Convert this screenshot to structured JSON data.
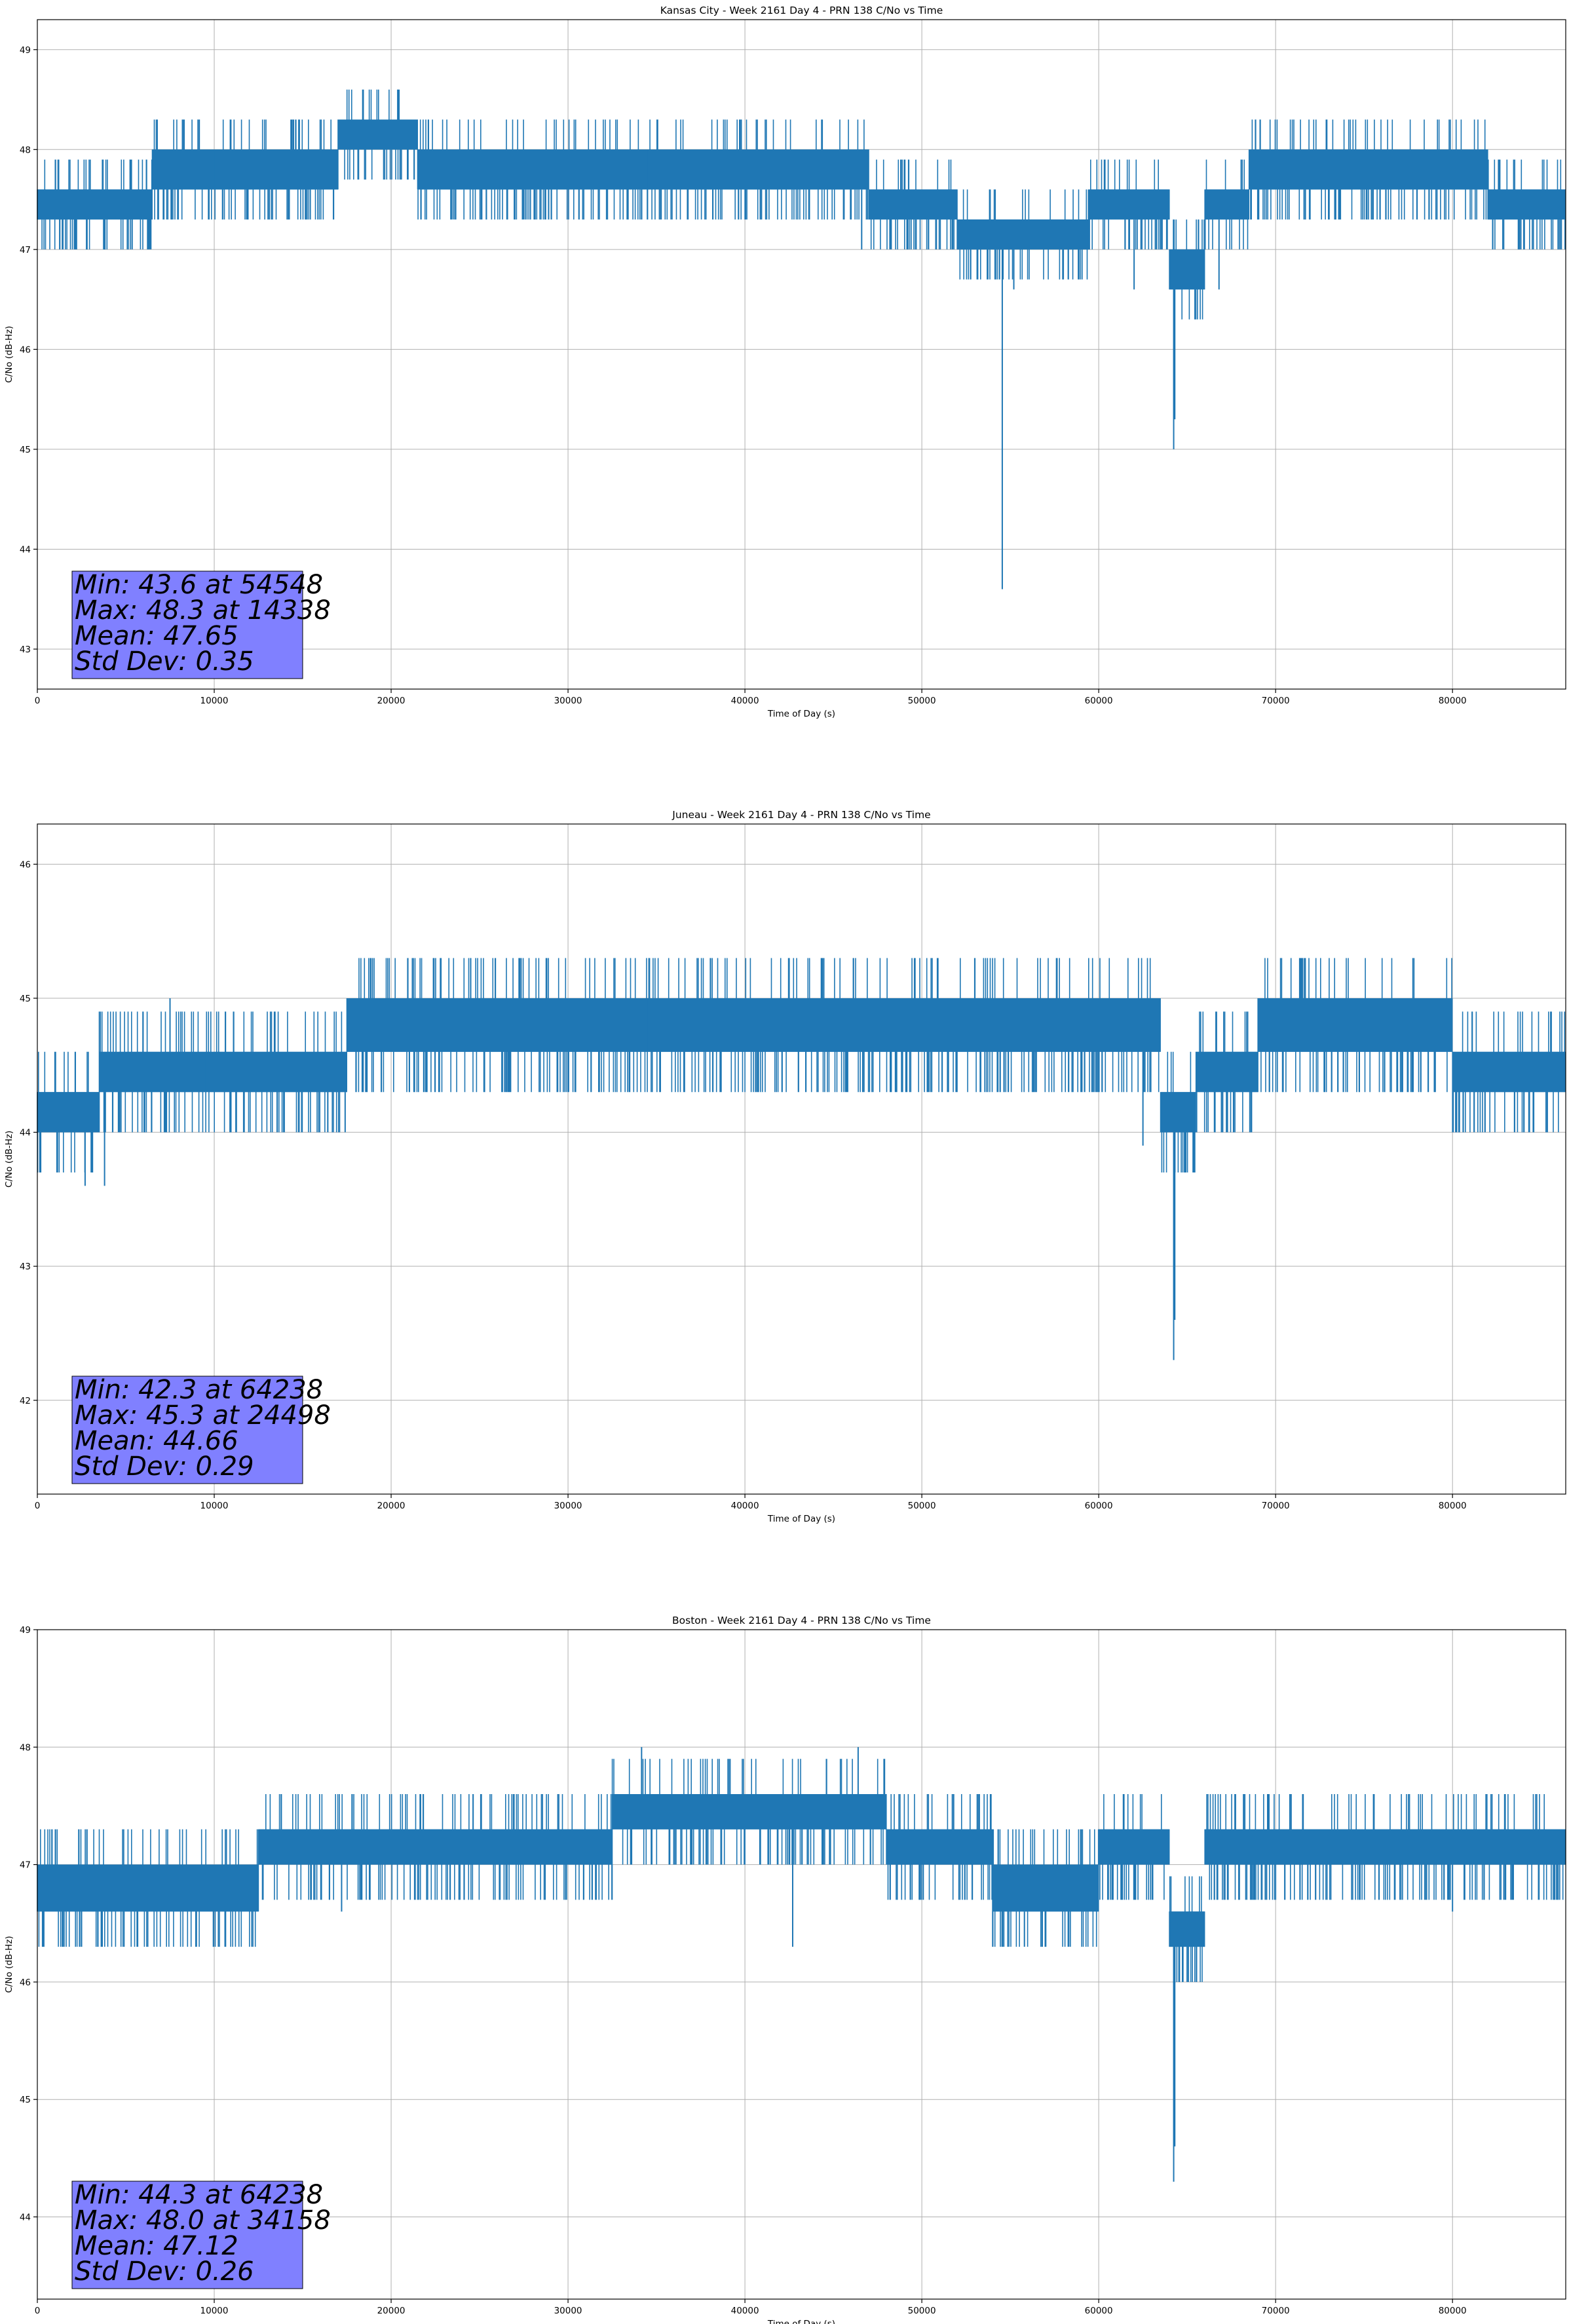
{
  "chart_data": [
    {
      "type": "line",
      "title": "Kansas City - Week 2161 Day 4 - PRN 138 C/No vs Time",
      "xlabel": "Time of Day (s)",
      "ylabel": "C/No (dB-Hz)",
      "xlim": [
        0,
        86400
      ],
      "ylim": [
        42.6,
        49.3
      ],
      "xticks": [
        0,
        10000,
        20000,
        30000,
        40000,
        50000,
        60000,
        70000,
        80000
      ],
      "xtick_labels": [
        "0",
        "10000",
        "20000",
        "30000",
        "40000",
        "50000",
        "60000",
        "70000",
        "80000"
      ],
      "yticks": [
        43,
        44,
        45,
        46,
        47,
        48,
        49
      ],
      "ytick_labels": [
        "43",
        "44",
        "45",
        "46",
        "47",
        "48",
        "49"
      ],
      "grid": true,
      "color": "#1f77b4",
      "series_profile": [
        {
          "x": [
            0,
            6500
          ],
          "lo": 47.3,
          "hi": 47.6
        },
        {
          "x": [
            6500,
            10000
          ],
          "lo": 47.6,
          "hi": 48.0
        },
        {
          "x": [
            10000,
            17000
          ],
          "lo": 47.6,
          "hi": 48.0
        },
        {
          "x": [
            17000,
            21500
          ],
          "lo": 48.0,
          "hi": 48.3
        },
        {
          "x": [
            21500,
            34500
          ],
          "lo": 47.6,
          "hi": 48.0
        },
        {
          "x": [
            34500,
            47000
          ],
          "lo": 47.6,
          "hi": 48.0
        },
        {
          "x": [
            47000,
            52000
          ],
          "lo": 47.3,
          "hi": 47.6
        },
        {
          "x": [
            52000,
            59500
          ],
          "lo": 47.0,
          "hi": 47.3
        },
        {
          "x": [
            59500,
            64000
          ],
          "lo": 47.3,
          "hi": 47.6
        },
        {
          "x": [
            64000,
            66000
          ],
          "lo": 46.6,
          "hi": 47.0
        },
        {
          "x": [
            66000,
            68500
          ],
          "lo": 47.3,
          "hi": 47.6
        },
        {
          "x": [
            68500,
            82000
          ],
          "lo": 47.6,
          "hi": 48.0
        },
        {
          "x": [
            82000,
            86400
          ],
          "lo": 47.3,
          "hi": 47.6
        }
      ],
      "spikes": [
        {
          "x": 54548,
          "y": 43.6
        },
        {
          "x": 64238,
          "y": 45.0
        },
        {
          "x": 64300,
          "y": 45.3
        },
        {
          "x": 14338,
          "y": 48.3
        },
        {
          "x": 2800,
          "y": 47.0
        },
        {
          "x": 3800,
          "y": 47.0
        },
        {
          "x": 46600,
          "y": 47.0
        },
        {
          "x": 55200,
          "y": 46.6
        },
        {
          "x": 62000,
          "y": 46.6
        },
        {
          "x": 66800,
          "y": 46.6
        },
        {
          "x": 23500,
          "y": 47.3
        },
        {
          "x": 27500,
          "y": 47.3
        }
      ],
      "stats": {
        "min": "Min: 43.6 at 54548",
        "max": "Max: 48.3 at 14338",
        "mean": "Mean: 47.65",
        "std": "Std Dev: 0.35"
      }
    },
    {
      "type": "line",
      "title": "Juneau - Week 2161 Day 4 - PRN 138 C/No vs Time",
      "xlabel": "Time of Day (s)",
      "ylabel": "C/No (dB-Hz)",
      "xlim": [
        0,
        86400
      ],
      "ylim": [
        41.3,
        46.3
      ],
      "xticks": [
        0,
        10000,
        20000,
        30000,
        40000,
        50000,
        60000,
        70000,
        80000
      ],
      "xtick_labels": [
        "0",
        "10000",
        "20000",
        "30000",
        "40000",
        "50000",
        "60000",
        "70000",
        "80000"
      ],
      "yticks": [
        42,
        43,
        44,
        45,
        46
      ],
      "ytick_labels": [
        "42",
        "43",
        "44",
        "45",
        "46"
      ],
      "grid": true,
      "color": "#1f77b4",
      "series_profile": [
        {
          "x": [
            0,
            3500
          ],
          "lo": 44.0,
          "hi": 44.3
        },
        {
          "x": [
            3500,
            9500
          ],
          "lo": 44.3,
          "hi": 44.6
        },
        {
          "x": [
            9500,
            17500
          ],
          "lo": 44.3,
          "hi": 44.6
        },
        {
          "x": [
            17500,
            25000
          ],
          "lo": 44.6,
          "hi": 45.0
        },
        {
          "x": [
            25000,
            34500
          ],
          "lo": 44.6,
          "hi": 45.0
        },
        {
          "x": [
            34500,
            45000
          ],
          "lo": 44.6,
          "hi": 45.0
        },
        {
          "x": [
            45000,
            63500
          ],
          "lo": 44.6,
          "hi": 45.0
        },
        {
          "x": [
            63500,
            65500
          ],
          "lo": 44.0,
          "hi": 44.3
        },
        {
          "x": [
            65500,
            69000
          ],
          "lo": 44.3,
          "hi": 44.6
        },
        {
          "x": [
            69000,
            80000
          ],
          "lo": 44.6,
          "hi": 45.0
        },
        {
          "x": [
            80000,
            86400
          ],
          "lo": 44.3,
          "hi": 44.6
        }
      ],
      "spikes": [
        {
          "x": 64238,
          "y": 42.3
        },
        {
          "x": 64300,
          "y": 42.6
        },
        {
          "x": 24498,
          "y": 45.3
        },
        {
          "x": 2700,
          "y": 43.6
        },
        {
          "x": 3800,
          "y": 43.6
        },
        {
          "x": 7500,
          "y": 45.0
        },
        {
          "x": 17400,
          "y": 44.0
        },
        {
          "x": 62500,
          "y": 43.9
        }
      ],
      "stats": {
        "min": "Min: 42.3 at 64238",
        "max": "Max: 45.3 at 24498",
        "mean": "Mean: 44.66",
        "std": "Std Dev: 0.29"
      }
    },
    {
      "type": "line",
      "title": "Boston - Week 2161 Day 4 - PRN 138 C/No vs Time",
      "xlabel": "Time of Day (s)",
      "ylabel": "C/No (dB-Hz)",
      "xlim": [
        0,
        86400
      ],
      "ylim": [
        43.3,
        49.0
      ],
      "xticks": [
        0,
        10000,
        20000,
        30000,
        40000,
        50000,
        60000,
        70000,
        80000
      ],
      "xtick_labels": [
        "0",
        "10000",
        "20000",
        "30000",
        "40000",
        "50000",
        "60000",
        "70000",
        "80000"
      ],
      "yticks": [
        44,
        45,
        46,
        47,
        48,
        49
      ],
      "ytick_labels": [
        "44",
        "45",
        "46",
        "47",
        "48",
        "49"
      ],
      "grid": true,
      "color": "#1f77b4",
      "series_profile": [
        {
          "x": [
            0,
            12500
          ],
          "lo": 46.6,
          "hi": 47.0
        },
        {
          "x": [
            12500,
            32500
          ],
          "lo": 47.0,
          "hi": 47.3
        },
        {
          "x": [
            32500,
            48000
          ],
          "lo": 47.3,
          "hi": 47.6
        },
        {
          "x": [
            48000,
            54000
          ],
          "lo": 47.0,
          "hi": 47.3
        },
        {
          "x": [
            54000,
            60000
          ],
          "lo": 46.6,
          "hi": 47.0
        },
        {
          "x": [
            60000,
            64000
          ],
          "lo": 47.0,
          "hi": 47.3
        },
        {
          "x": [
            64000,
            66000
          ],
          "lo": 46.3,
          "hi": 46.6
        },
        {
          "x": [
            66000,
            86400
          ],
          "lo": 47.0,
          "hi": 47.3
        }
      ],
      "spikes": [
        {
          "x": 64238,
          "y": 44.3
        },
        {
          "x": 64300,
          "y": 44.6
        },
        {
          "x": 34158,
          "y": 48.0
        },
        {
          "x": 46400,
          "y": 48.0
        },
        {
          "x": 42700,
          "y": 46.3
        },
        {
          "x": 55800,
          "y": 46.3
        },
        {
          "x": 17200,
          "y": 46.6
        },
        {
          "x": 80000,
          "y": 46.6
        }
      ],
      "stats": {
        "min": "Min: 44.3 at 64238",
        "max": "Max: 48.0 at 34158",
        "mean": "Mean: 47.12",
        "std": "Std Dev: 0.26"
      }
    }
  ]
}
